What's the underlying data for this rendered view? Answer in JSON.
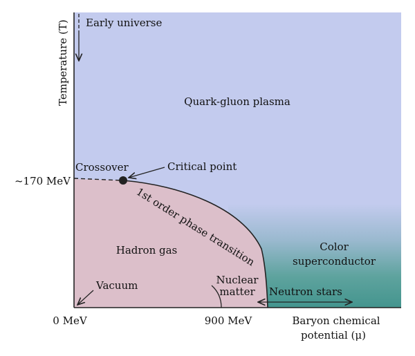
{
  "diagram": {
    "regions": {
      "qgp": "Quark-gluon plasma",
      "hadron_gas": "Hadron gas",
      "color_sc_line1": "Color",
      "color_sc_line2": "superconductor"
    },
    "annotations": {
      "early_universe": "Early universe",
      "crossover": "Crossover",
      "critical_point": "Critical point",
      "phase_transition": "1st order phase transition",
      "vacuum": "Vacuum",
      "nuclear_line1": "Nuclear",
      "nuclear_line2": "matter",
      "neutron_stars": "Neutron stars"
    },
    "axes": {
      "y_label": "Temperature (T)",
      "y_tick": "~170 MeV",
      "x_tick_0": "0 MeV",
      "x_tick_900": "900 MeV",
      "x_label_line1": "Baryon chemical",
      "x_label_line2": "potential (μ)"
    },
    "colors": {
      "qgp": "#c3cbee",
      "hadron": "#dcbfca",
      "superconductor": "#4c9a92",
      "line": "#222222"
    }
  }
}
